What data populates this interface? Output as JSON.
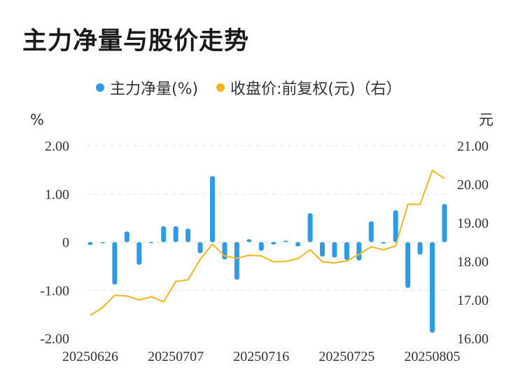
{
  "title": "主力净量与股价走势",
  "colors": {
    "bar": "#2f9ae6",
    "line": "#f2b51d",
    "grid": "#e3e3e3",
    "text": "#333333"
  },
  "chart_data": {
    "type": "bar+line",
    "legend": [
      "主力净量(%)",
      "收盘价:前复权(元)（右）"
    ],
    "legend_position": "top-center",
    "left_unit": "%",
    "right_unit": "元",
    "y_left_ticks": [
      "2.00",
      "1.00",
      "0",
      "-1.00",
      "-2.00"
    ],
    "y_right_ticks": [
      "21.00",
      "20.00",
      "19.00",
      "18.00",
      "17.00",
      "16.00"
    ],
    "y_left_range": [
      -2,
      2
    ],
    "y_right_range": [
      16,
      21
    ],
    "x_tick_labels": [
      "20250626",
      "20250707",
      "20250716",
      "20250725",
      "20250805"
    ],
    "x_tick_index": [
      0,
      7,
      14,
      21,
      28
    ],
    "grid": "horizontal-dashed",
    "series": [
      {
        "name": "主力净量(%)",
        "axis": "left",
        "type": "bar",
        "values": [
          -0.06,
          -0.01,
          -0.88,
          0.22,
          -0.47,
          -0.02,
          0.33,
          0.33,
          0.28,
          -0.23,
          1.37,
          -0.36,
          -0.78,
          0.06,
          -0.18,
          -0.05,
          0.03,
          -0.09,
          0.6,
          -0.3,
          -0.32,
          -0.37,
          -0.38,
          0.43,
          -0.03,
          0.66,
          -0.95,
          -0.26,
          -1.88,
          0.79
        ]
      },
      {
        "name": "收盘价:前复权(元)",
        "axis": "right",
        "type": "line",
        "values": [
          16.6,
          16.8,
          17.12,
          17.1,
          17.0,
          17.08,
          16.95,
          17.48,
          17.52,
          18.05,
          18.45,
          18.14,
          18.08,
          18.16,
          18.14,
          17.99,
          18.0,
          18.07,
          18.3,
          17.99,
          17.96,
          18.01,
          18.18,
          18.38,
          18.3,
          18.4,
          19.48,
          19.48,
          20.36,
          20.15
        ]
      }
    ]
  }
}
